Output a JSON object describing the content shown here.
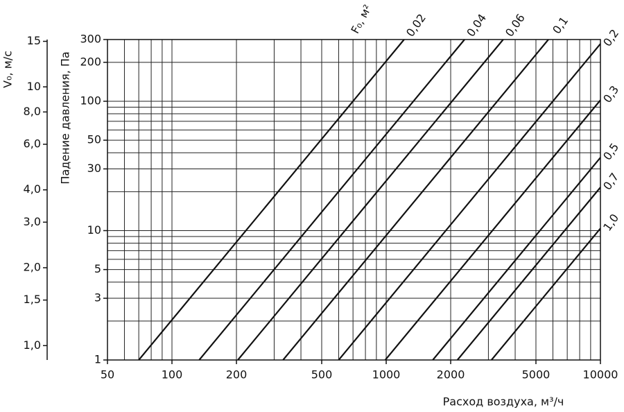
{
  "chart_data": {
    "type": "line",
    "xlabel": "Расход воздуха, м³/ч",
    "ylabel": "Падение давления, Па",
    "y2label": "V₀, м/с",
    "legend_title": "F₀, м²",
    "xscale": "log",
    "yscale": "log",
    "y2scale": "log",
    "xlim": [
      50,
      10000
    ],
    "ylim": [
      1,
      300
    ],
    "y2lim": [
      0.88,
      15.24
    ],
    "xticks": [
      50,
      100,
      200,
      500,
      1000,
      2000,
      5000,
      10000
    ],
    "yticks": [
      1,
      3,
      5,
      10,
      30,
      50,
      100,
      200,
      300
    ],
    "y2ticks": [
      {
        "value": 1,
        "label": "1,0"
      },
      {
        "value": 1.5,
        "label": "1,5"
      },
      {
        "value": 2,
        "label": "2,0"
      },
      {
        "value": 3,
        "label": "3,0"
      },
      {
        "value": 4,
        "label": "4,0"
      },
      {
        "value": 6,
        "label": "6,0"
      },
      {
        "value": 8,
        "label": "8,0"
      },
      10,
      15
    ],
    "xgrid": [
      60,
      70,
      80,
      90,
      100,
      200,
      300,
      400,
      500,
      600,
      700,
      800,
      900,
      1000,
      2000,
      3000,
      4000,
      5000,
      6000,
      7000,
      8000,
      9000
    ],
    "ygrid": [
      2,
      3,
      4,
      5,
      6,
      7,
      8,
      9,
      10,
      20,
      30,
      40,
      50,
      60,
      70,
      80,
      90,
      100,
      200
    ],
    "grid": true,
    "series": [
      {
        "name": "0,02",
        "color": "#111111",
        "x": [
          70,
          1212
        ],
        "values": [
          1,
          300
        ]
      },
      {
        "name": "0,04",
        "color": "#111111",
        "x": [
          134,
          2321
        ],
        "values": [
          1,
          300
        ]
      },
      {
        "name": "0,06",
        "color": "#111111",
        "x": [
          203,
          3516
        ],
        "values": [
          1,
          300
        ]
      },
      {
        "name": "0,1",
        "color": "#111111",
        "x": [
          330,
          5716
        ],
        "values": [
          1,
          300
        ]
      },
      {
        "name": "0,2",
        "color": "#111111",
        "x": [
          600,
          10000
        ],
        "values": [
          1,
          278
        ]
      },
      {
        "name": "0,3",
        "color": "#111111",
        "x": [
          990,
          10000
        ],
        "values": [
          1,
          102
        ]
      },
      {
        "name": "0,5",
        "color": "#111111",
        "x": [
          1650,
          10000
        ],
        "values": [
          1,
          36.7
        ]
      },
      {
        "name": "0,7",
        "color": "#111111",
        "x": [
          2150,
          10000
        ],
        "values": [
          1,
          21.6
        ]
      },
      {
        "name": "1,0",
        "color": "#111111",
        "x": [
          3100,
          10000
        ],
        "values": [
          1,
          10.4
        ]
      }
    ]
  }
}
